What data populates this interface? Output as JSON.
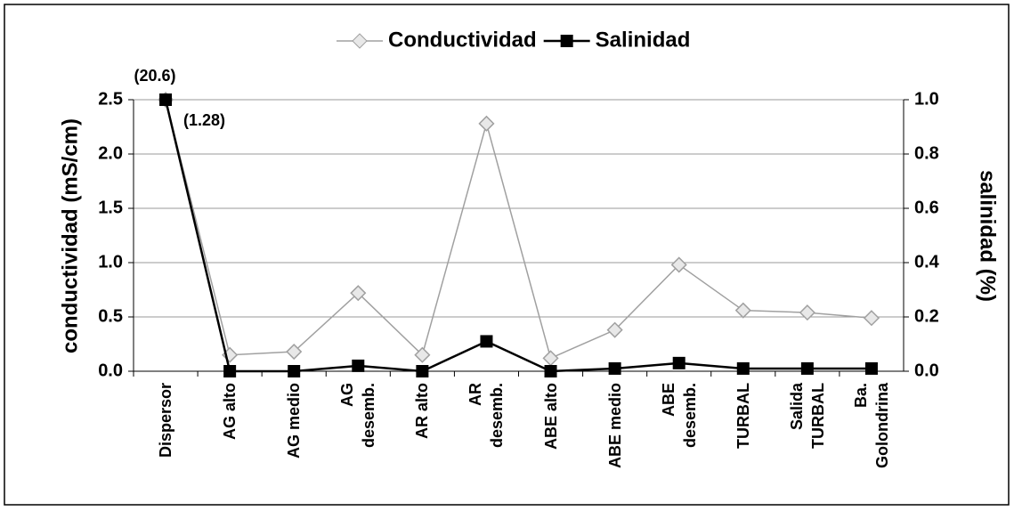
{
  "chart_data": {
    "type": "line",
    "categories": [
      "Dispersor",
      "AG alto",
      "AG medio",
      "AG\ndesemb.",
      "AR alto",
      "AR\ndesemb.",
      "ABE alto",
      "ABE medio",
      "ABE\ndesemb.",
      "TURBAL",
      "Salida\nTURBAL",
      "Ba.\nGolondrina"
    ],
    "series": [
      {
        "name": "Conductividad",
        "color": "#a0a0a0",
        "marker": "diamond",
        "values": [
          20.6,
          0.15,
          0.18,
          0.72,
          0.15,
          2.28,
          0.12,
          0.38,
          0.98,
          0.56,
          0.54,
          0.49
        ],
        "value_labels": [
          "(20.6)",
          null,
          null,
          null,
          null,
          null,
          null,
          null,
          null,
          null,
          null,
          null
        ]
      },
      {
        "name": "Salinidad",
        "color": "#000000",
        "marker": "square",
        "axis": "y2",
        "values": [
          1.28,
          0.0,
          0.0,
          0.02,
          0.0,
          0.11,
          0.0,
          0.01,
          0.03,
          0.01,
          0.01,
          0.01
        ],
        "value_labels": [
          "(1.28)",
          null,
          null,
          null,
          null,
          null,
          null,
          null,
          null,
          null,
          null,
          null
        ]
      }
    ],
    "ylabel": "conductividad (mS/cm)",
    "y2label": "salinidad (%)",
    "ylim": [
      0,
      2.5
    ],
    "yticks": [
      {
        "value": 0,
        "label": "0.0"
      },
      0.5,
      {
        "value": 1,
        "label": "1.0"
      },
      1.5,
      {
        "value": 2,
        "label": "2.0"
      },
      2.5
    ],
    "y2lim": [
      0,
      1
    ],
    "y2ticks": [
      {
        "value": 0,
        "label": "0.0"
      },
      0.2,
      0.4,
      0.6,
      0.8,
      {
        "value": 1,
        "label": "1.0"
      }
    ],
    "grid": true,
    "legend": "top"
  }
}
